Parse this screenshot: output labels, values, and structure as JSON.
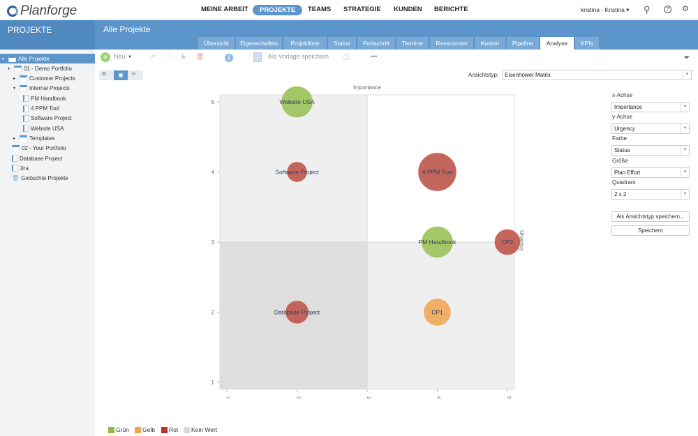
{
  "app": {
    "logo": "Planforge",
    "nav": [
      "MEINE ARBEIT",
      "PROJEKTE",
      "TEAMS",
      "STRATEGIE",
      "KUNDEN",
      "BERICHTE"
    ],
    "active_nav": "PROJEKTE",
    "user": "kristina - Kristina ▾"
  },
  "sidebar": {
    "title": "PROJEKTE",
    "items": [
      {
        "label": "Alle Projekte",
        "level": 0,
        "icon": "folder",
        "toggle": "▾",
        "selected": true
      },
      {
        "label": "01 - Demo Portfolio",
        "level": 1,
        "icon": "folder",
        "toggle": "▾"
      },
      {
        "label": "Customer Projects",
        "level": 2,
        "icon": "folder",
        "toggle": "▸"
      },
      {
        "label": "Internal Projects",
        "level": 2,
        "icon": "folder",
        "toggle": "▾"
      },
      {
        "label": "PM Handbook",
        "level": 3,
        "icon": "doc"
      },
      {
        "label": "4 PPM Tool",
        "level": 3,
        "icon": "doc"
      },
      {
        "label": "Software Project",
        "level": 3,
        "icon": "doc"
      },
      {
        "label": "Website USA",
        "level": 3,
        "icon": "doc"
      },
      {
        "label": "Templates",
        "level": 2,
        "icon": "folder",
        "toggle": "▸"
      },
      {
        "label": "02 - Your Portfolio",
        "level": 1,
        "icon": "folder"
      },
      {
        "label": "Database Project",
        "level": 1,
        "icon": "doc"
      },
      {
        "label": "Jira",
        "level": 1,
        "icon": "doc"
      },
      {
        "label": "Gelöschte Projekte",
        "level": 1,
        "icon": "trash"
      }
    ]
  },
  "header": {
    "title": "Alle Projekte",
    "tabs": [
      "Übersicht",
      "Eigenschaften",
      "Projektliste",
      "Status",
      "Fortschritt",
      "Termine",
      "Ressourcen",
      "Kosten",
      "Pipeline",
      "Analyse",
      "KPIs"
    ],
    "active_tab": "Analyse"
  },
  "toolbar": {
    "new": "Neu",
    "save_template": "Als Vorlage speichern",
    "more": "•••"
  },
  "view": {
    "type_label": "Ansichtstyp:",
    "type_value": "Eisenhower Matrix"
  },
  "settings": {
    "x_label": "x-Achse",
    "x_value": "Importance",
    "y_label": "y-Achse",
    "y_value": "Urgency",
    "color_label": "Farbe",
    "color_value": "Status",
    "size_label": "Größe",
    "size_value": "Plan Effort",
    "quadrant_label": "Quadrant",
    "quadrant_value": "2 x 2",
    "save_viewtype": "Als Ansichtstyp speichern...",
    "save": "Speichern"
  },
  "chart_data": {
    "type": "scatter",
    "xlabel": "Importance",
    "ylabel": "Urgency",
    "xlim": [
      0.9,
      5.1
    ],
    "ylim": [
      0.9,
      5.1
    ],
    "xticks": [
      "1",
      "2",
      "3",
      "4",
      "5"
    ],
    "yticks": [
      "1",
      "2",
      "3",
      "4",
      "5"
    ],
    "quadrant_split": {
      "x": 3,
      "y": 3
    },
    "points": [
      {
        "name": "Website USA",
        "x": 2,
        "y": 5,
        "size": 22,
        "status": "Grün"
      },
      {
        "name": "Software Project",
        "x": 2,
        "y": 4,
        "size": 14,
        "status": "Rot"
      },
      {
        "name": "4 PPM Tool",
        "x": 4,
        "y": 4,
        "size": 27,
        "status": "Rot"
      },
      {
        "name": "PM Handbook",
        "x": 4,
        "y": 3,
        "size": 22,
        "status": "Grün"
      },
      {
        "name": "CP2",
        "x": 5,
        "y": 3,
        "size": 18,
        "status": "Rot"
      },
      {
        "name": "Database Project",
        "x": 2,
        "y": 2,
        "size": 16,
        "status": "Rot"
      },
      {
        "name": "CP1",
        "x": 4,
        "y": 2,
        "size": 19,
        "status": "Gelb"
      }
    ],
    "legend": [
      {
        "label": "Grün",
        "color": "#8dbb45"
      },
      {
        "label": "Gelb",
        "color": "#eea54d"
      },
      {
        "label": "Rot",
        "color": "#b7352b"
      },
      {
        "label": "Kein Wert",
        "color": "#d3dbe6"
      }
    ],
    "legend_placement": "bottom-left"
  }
}
